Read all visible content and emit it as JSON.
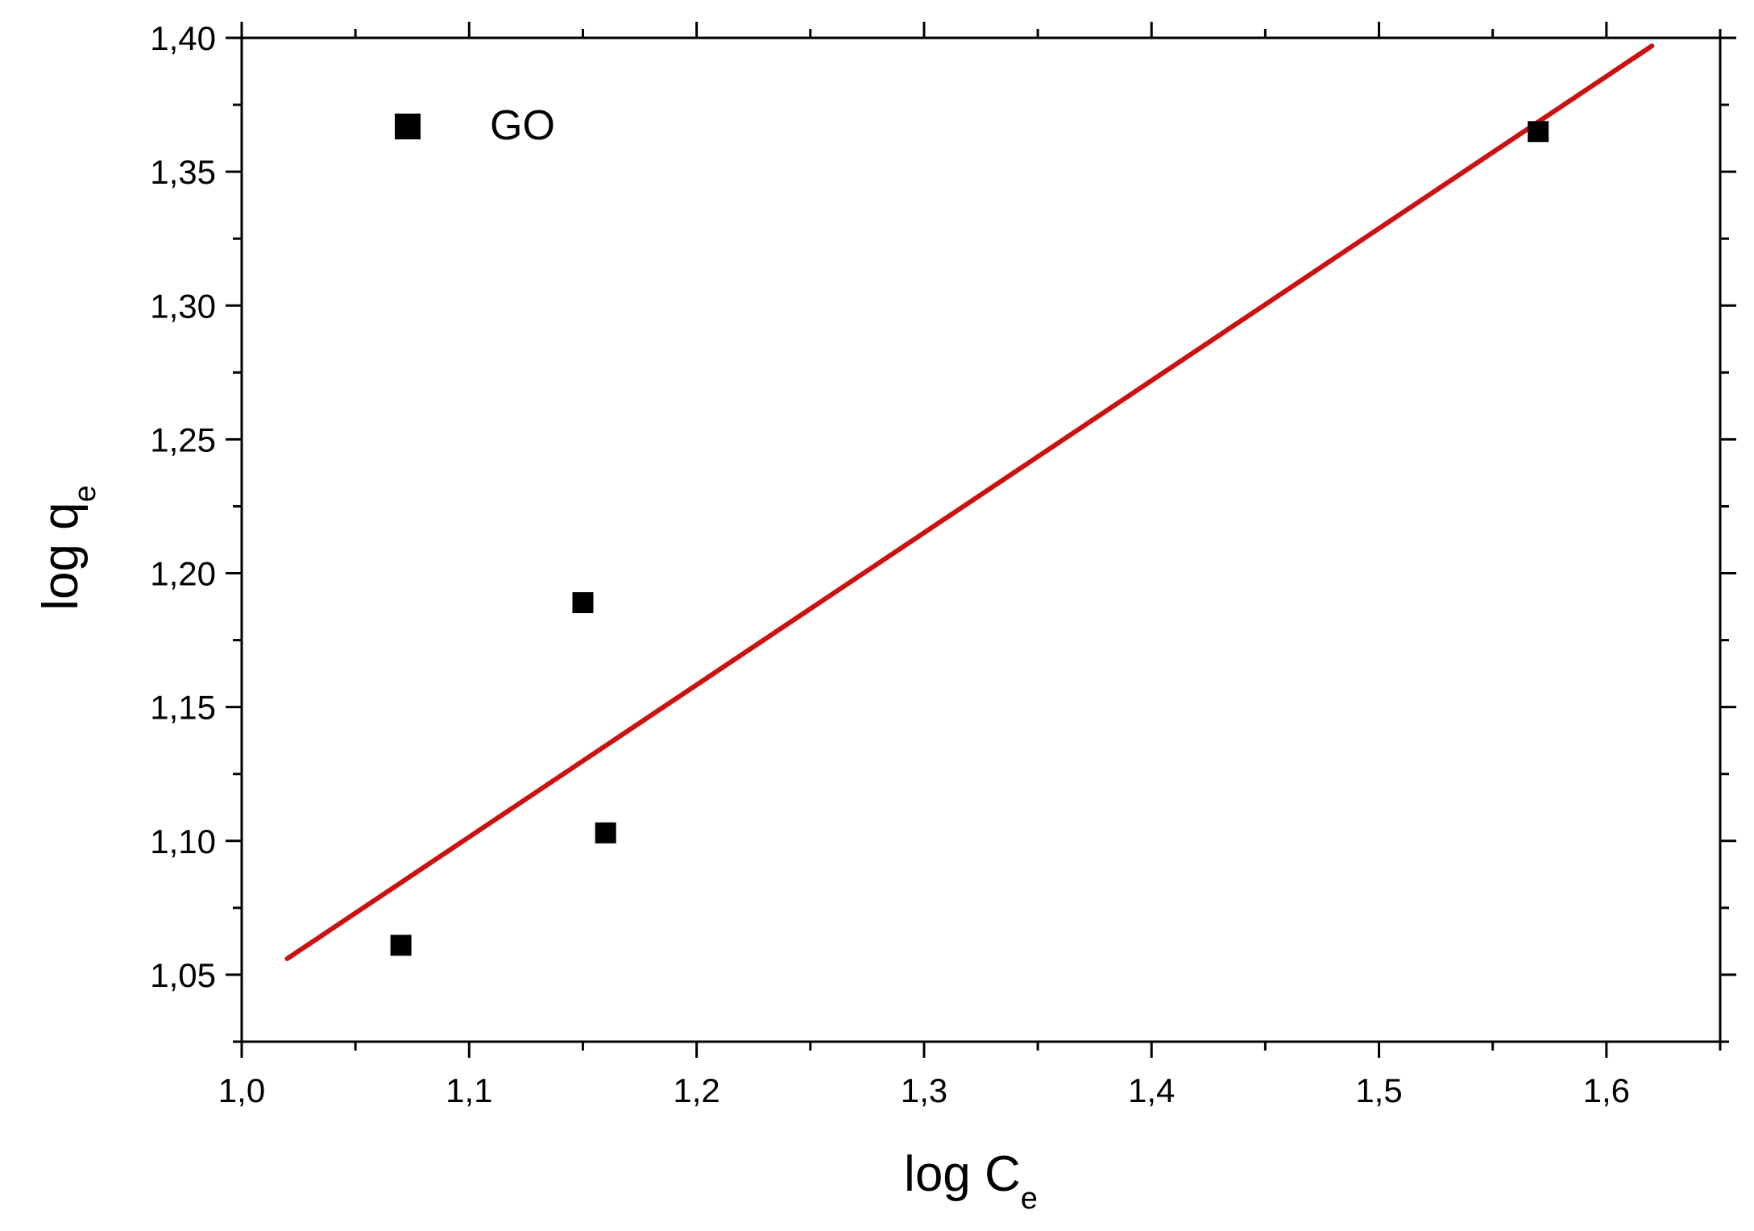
{
  "chart_data": {
    "type": "scatter",
    "title": "",
    "xlabel": {
      "text": "log C",
      "subscript": "e"
    },
    "ylabel": {
      "text": "log q",
      "subscript": "e"
    },
    "xlim": [
      1.0,
      1.65
    ],
    "ylim": [
      1.025,
      1.4
    ],
    "x_ticks": [
      "1,0",
      "1,1",
      "1,2",
      "1,3",
      "1,4",
      "1,5",
      "1,6"
    ],
    "x_tick_values": [
      1.0,
      1.1,
      1.2,
      1.3,
      1.4,
      1.5,
      1.6
    ],
    "y_ticks": [
      "1,05",
      "1,10",
      "1,15",
      "1,20",
      "1,25",
      "1,30",
      "1,35",
      "1,40"
    ],
    "y_tick_values": [
      1.05,
      1.1,
      1.15,
      1.2,
      1.25,
      1.3,
      1.35,
      1.4
    ],
    "grid": false,
    "legend": {
      "position": "top-left",
      "entries": [
        "GO"
      ]
    },
    "series": [
      {
        "name": "GO",
        "marker": "square",
        "color": "#000000",
        "points": [
          {
            "x": 1.07,
            "y": 1.061
          },
          {
            "x": 1.15,
            "y": 1.189
          },
          {
            "x": 1.16,
            "y": 1.103
          },
          {
            "x": 1.57,
            "y": 1.365
          }
        ]
      }
    ],
    "fit_line": {
      "color": "#cc1111",
      "x": [
        1.02,
        1.62
      ],
      "y": [
        1.056,
        1.397
      ]
    }
  }
}
